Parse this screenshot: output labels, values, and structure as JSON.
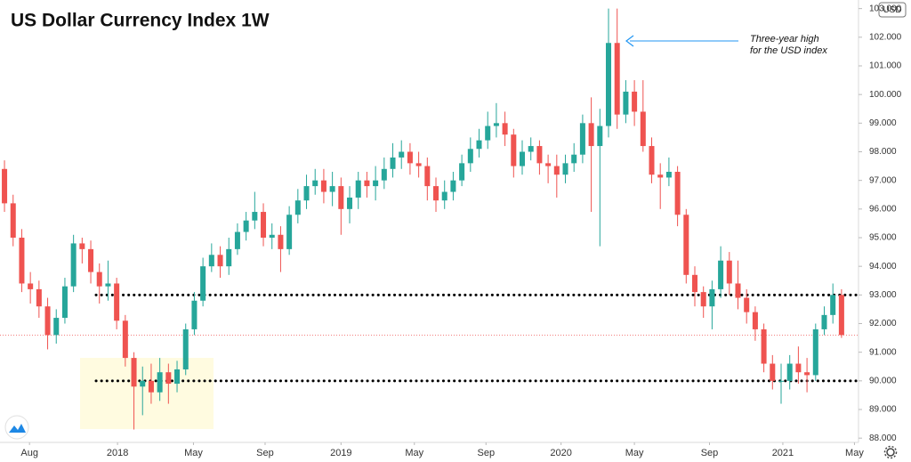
{
  "chart_data": {
    "type": "candlestick",
    "title": "US Dollar Currency Index 1W",
    "currency": "USD",
    "annotation": [
      "Three-year high",
      "for the USD index"
    ],
    "up_color": "#26a69a",
    "down_color": "#ef5350",
    "open": [
      97.4,
      96.2,
      95.0,
      93.4,
      93.2,
      92.6,
      91.6,
      92.2,
      93.3,
      94.8,
      94.6,
      93.8,
      93.3,
      93.4,
      92.1,
      90.8,
      89.8,
      90.0,
      89.6,
      90.3,
      89.9,
      90.4,
      91.8,
      92.8,
      94.0,
      94.4,
      94.0,
      94.6,
      95.2,
      95.6,
      95.9,
      95.0,
      95.1,
      94.6,
      95.8,
      96.3,
      96.8,
      97.0,
      96.6,
      96.8,
      96.0,
      96.4,
      97.0,
      96.8,
      97.0,
      97.4,
      97.8,
      98.0,
      97.6,
      97.5,
      96.8,
      96.3,
      96.6,
      97.0,
      97.6,
      98.1,
      98.4,
      98.9,
      99.0,
      98.6,
      97.5,
      98.0,
      98.2,
      97.6,
      97.5,
      97.2,
      97.6,
      97.9,
      99.0,
      98.2,
      98.9,
      101.8,
      99.3,
      100.1,
      99.4,
      98.2,
      97.2,
      97.1,
      97.3,
      95.8,
      93.7,
      93.1,
      92.6,
      93.2,
      94.2,
      93.4,
      92.9,
      92.4,
      91.8,
      90.6,
      90.0,
      90.0,
      90.6,
      90.3,
      90.2,
      91.8,
      92.3,
      93.0
    ],
    "high": [
      97.7,
      96.5,
      95.3,
      93.8,
      93.5,
      92.9,
      92.5,
      93.6,
      95.1,
      95.0,
      94.9,
      94.1,
      94.2,
      93.6,
      92.3,
      91.0,
      90.5,
      90.6,
      90.8,
      90.6,
      90.7,
      92.0,
      93.1,
      94.3,
      94.8,
      94.7,
      95.0,
      95.5,
      95.9,
      96.6,
      96.2,
      95.5,
      95.4,
      96.1,
      96.7,
      97.2,
      97.4,
      97.4,
      97.3,
      97.1,
      96.8,
      97.3,
      97.3,
      97.5,
      97.8,
      98.3,
      98.4,
      98.3,
      98.0,
      97.8,
      97.1,
      97.0,
      97.3,
      97.9,
      98.5,
      98.8,
      99.4,
      99.7,
      99.4,
      98.8,
      98.4,
      98.5,
      98.4,
      97.9,
      97.9,
      97.9,
      98.3,
      99.3,
      99.9,
      99.5,
      103.0,
      103.0,
      100.5,
      100.5,
      100.5,
      98.5,
      97.6,
      97.8,
      97.5,
      96.0,
      94.0,
      93.3,
      93.5,
      94.7,
      94.5,
      94.2,
      93.2,
      92.6,
      92.0,
      90.9,
      90.6,
      90.9,
      91.2,
      90.8,
      92.0,
      92.6,
      93.4,
      93.2
    ],
    "low": [
      95.9,
      94.7,
      93.1,
      92.7,
      92.2,
      91.1,
      91.3,
      92.0,
      93.1,
      94.1,
      93.4,
      92.7,
      92.8,
      91.8,
      90.5,
      88.3,
      88.8,
      89.2,
      89.3,
      89.2,
      89.6,
      90.2,
      91.6,
      92.6,
      93.8,
      93.6,
      93.7,
      94.4,
      94.9,
      95.3,
      94.7,
      94.6,
      93.8,
      94.4,
      95.5,
      96.0,
      96.5,
      96.2,
      96.1,
      95.1,
      95.5,
      96.0,
      96.4,
      96.3,
      96.7,
      97.1,
      97.4,
      97.2,
      97.1,
      96.3,
      95.9,
      96.0,
      96.3,
      96.8,
      97.3,
      97.8,
      98.1,
      98.5,
      98.2,
      97.1,
      97.2,
      97.7,
      97.2,
      96.9,
      96.4,
      96.9,
      97.3,
      97.6,
      95.9,
      94.7,
      98.5,
      98.8,
      99.0,
      98.9,
      98.0,
      96.9,
      96.0,
      96.8,
      95.4,
      93.4,
      92.6,
      92.2,
      91.8,
      92.9,
      93.0,
      92.5,
      92.0,
      91.4,
      90.3,
      89.7,
      89.2,
      89.7,
      89.9,
      89.6,
      90.0,
      91.6,
      92.0,
      91.5
    ],
    "close": [
      96.2,
      95.0,
      93.4,
      93.2,
      92.6,
      91.6,
      92.2,
      93.3,
      94.8,
      94.6,
      93.8,
      93.3,
      93.4,
      92.1,
      90.8,
      89.8,
      90.0,
      89.6,
      90.3,
      89.9,
      90.4,
      91.8,
      92.8,
      94.0,
      94.4,
      94.0,
      94.6,
      95.2,
      95.6,
      95.9,
      95.0,
      95.1,
      94.6,
      95.8,
      96.3,
      96.8,
      97.0,
      96.6,
      96.8,
      96.0,
      96.4,
      97.0,
      96.8,
      97.0,
      97.4,
      97.8,
      98.0,
      97.6,
      97.5,
      96.8,
      96.3,
      96.6,
      97.0,
      97.6,
      98.1,
      98.4,
      98.9,
      99.0,
      98.6,
      97.5,
      98.0,
      98.2,
      97.6,
      97.5,
      97.2,
      97.6,
      97.9,
      99.0,
      98.2,
      98.9,
      101.8,
      99.3,
      100.1,
      99.4,
      98.2,
      97.2,
      97.1,
      97.3,
      95.8,
      93.7,
      93.1,
      92.6,
      93.2,
      94.2,
      93.4,
      92.9,
      92.4,
      91.8,
      90.6,
      90.0,
      90.0,
      90.6,
      90.3,
      90.2,
      91.8,
      92.3,
      93.0,
      91.6
    ],
    "levels": [
      93,
      90
    ],
    "xlim": [
      -0.52,
      98.97
    ],
    "xticks": [
      {
        "value": 2.9,
        "label": "Aug"
      },
      {
        "value": 13.1,
        "label": "2018"
      },
      {
        "value": 21.9,
        "label": "May"
      },
      {
        "value": 30.2,
        "label": "Sep"
      },
      {
        "value": 39,
        "label": "2019"
      },
      {
        "value": 47.5,
        "label": "May"
      },
      {
        "value": 55.8,
        "label": "Sep"
      },
      {
        "value": 64.5,
        "label": "2020"
      },
      {
        "value": 73,
        "label": "May"
      },
      {
        "value": 81.7,
        "label": "Sep"
      },
      {
        "value": 90.2,
        "label": "2021"
      },
      {
        "value": 98.5,
        "label": "May"
      }
    ],
    "ylim": [
      87.85,
      103.3
    ],
    "yticks": [
      {
        "value": 88,
        "label": "88.000"
      },
      {
        "value": 89,
        "label": "89.000"
      },
      {
        "value": 90,
        "label": "90.000"
      },
      {
        "value": 91,
        "label": "91.000"
      },
      {
        "value": 92,
        "label": "92.000"
      },
      {
        "value": 93,
        "label": "93.000"
      },
      {
        "value": 94,
        "label": "94.000"
      },
      {
        "value": 95,
        "label": "95.000"
      },
      {
        "value": 96,
        "label": "96.000"
      },
      {
        "value": 97,
        "label": "97.000"
      },
      {
        "value": 98,
        "label": "98.000"
      },
      {
        "value": 99,
        "label": "99.000"
      },
      {
        "value": 100,
        "label": "100.000"
      },
      {
        "value": 101,
        "label": "101.000"
      },
      {
        "value": 102,
        "label": "102.000"
      },
      {
        "value": 103,
        "label": "103.000"
      }
    ],
    "grid": false
  }
}
